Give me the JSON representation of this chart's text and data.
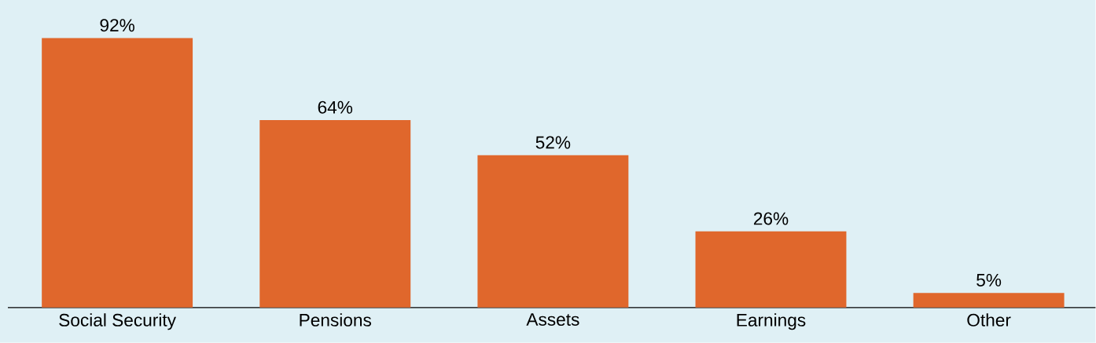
{
  "chart_data": {
    "type": "bar",
    "categories": [
      "Social Security",
      "Pensions",
      "Assets",
      "Earnings",
      "Other"
    ],
    "values": [
      92,
      64,
      52,
      26,
      5
    ],
    "value_labels": [
      "92%",
      "64%",
      "52%",
      "26%",
      "5%"
    ],
    "color": "#e0672c",
    "ylim": [
      0,
      105
    ]
  }
}
